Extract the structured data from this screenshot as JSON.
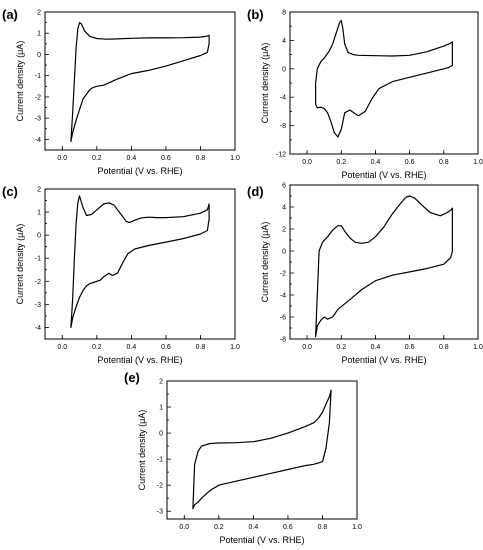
{
  "chart_data": [
    {
      "panel": "(a)",
      "type": "line",
      "xlabel": "Potential (V vs. RHE)",
      "ylabel": "Current density (μA)",
      "xlim": [
        -0.1,
        1.0
      ],
      "ylim": [
        -4.5,
        2
      ],
      "xticks": [
        "0.0",
        "0.2",
        "0.4",
        "0.6",
        "0.8",
        "1.0"
      ],
      "yticks": [
        "-4",
        "-3",
        "-2",
        "-1",
        "0",
        "1",
        "2"
      ],
      "series": [
        {
          "x": [
            0.05,
            0.06,
            0.07,
            0.08,
            0.09,
            0.1,
            0.11,
            0.13,
            0.16,
            0.2,
            0.25,
            0.3,
            0.4,
            0.5,
            0.6,
            0.7,
            0.8,
            0.83,
            0.85,
            0.85,
            0.84,
            0.8,
            0.7,
            0.6,
            0.5,
            0.4,
            0.32,
            0.28,
            0.24,
            0.2,
            0.18,
            0.16,
            0.12,
            0.1,
            0.08,
            0.06,
            0.05
          ],
          "y": [
            -4.1,
            -2.8,
            -1.2,
            0.3,
            1.2,
            1.5,
            1.45,
            1.1,
            0.85,
            0.75,
            0.72,
            0.73,
            0.76,
            0.78,
            0.78,
            0.79,
            0.82,
            0.85,
            0.9,
            0.5,
            0.1,
            -0.05,
            -0.3,
            -0.55,
            -0.75,
            -0.9,
            -1.15,
            -1.3,
            -1.45,
            -1.5,
            -1.55,
            -1.65,
            -2.1,
            -2.6,
            -3.1,
            -3.7,
            -4.1
          ]
        }
      ]
    },
    {
      "panel": "(b)",
      "type": "line",
      "xlabel": "Potential (V vs. RHE)",
      "ylabel": "Current density (μA)",
      "xlim": [
        -0.1,
        1.0
      ],
      "ylim": [
        -12,
        8
      ],
      "xticks": [
        "0.0",
        "0.2",
        "0.4",
        "0.6",
        "0.8",
        "1.0"
      ],
      "yticks": [
        "-12",
        "-8",
        "-4",
        "0",
        "4",
        "8"
      ],
      "series": [
        {
          "x": [
            0.05,
            0.05,
            0.06,
            0.08,
            0.1,
            0.13,
            0.15,
            0.17,
            0.19,
            0.2,
            0.21,
            0.22,
            0.24,
            0.27,
            0.3,
            0.4,
            0.5,
            0.6,
            0.7,
            0.8,
            0.84,
            0.85,
            0.85,
            0.83,
            0.8,
            0.7,
            0.6,
            0.5,
            0.42,
            0.38,
            0.34,
            0.3,
            0.28,
            0.25,
            0.22,
            0.2,
            0.18,
            0.16,
            0.14,
            0.12,
            0.1,
            0.08,
            0.06
          ],
          "y": [
            -5,
            -2,
            0,
            1,
            1.5,
            2.5,
            3.5,
            5,
            6.5,
            6.8,
            5.5,
            3.5,
            2.3,
            2.0,
            1.9,
            1.85,
            1.8,
            1.9,
            2.4,
            3.2,
            3.6,
            3.8,
            0.5,
            0.2,
            0,
            -0.6,
            -1.2,
            -1.8,
            -2.8,
            -4.2,
            -6.0,
            -6.6,
            -6.3,
            -5.8,
            -6.2,
            -8.5,
            -9.6,
            -9.0,
            -7.5,
            -6.2,
            -5.6,
            -5.4,
            -5.5
          ]
        }
      ]
    },
    {
      "panel": "(c)",
      "type": "line",
      "xlabel": "Potential (V vs. RHE)",
      "ylabel": "Current density (μA)",
      "xlim": [
        -0.1,
        1.0
      ],
      "ylim": [
        -4.5,
        2
      ],
      "xticks": [
        "0.0",
        "0.2",
        "0.4",
        "0.6",
        "0.8",
        "1.0"
      ],
      "yticks": [
        "-4",
        "-3",
        "-2",
        "-1",
        "0",
        "1",
        "2"
      ],
      "series": [
        {
          "x": [
            0.05,
            0.06,
            0.07,
            0.08,
            0.09,
            0.1,
            0.12,
            0.14,
            0.17,
            0.2,
            0.24,
            0.27,
            0.3,
            0.34,
            0.37,
            0.39,
            0.42,
            0.46,
            0.5,
            0.55,
            0.6,
            0.7,
            0.8,
            0.84,
            0.85,
            0.85,
            0.84,
            0.8,
            0.7,
            0.6,
            0.5,
            0.42,
            0.38,
            0.35,
            0.32,
            0.29,
            0.27,
            0.24,
            0.22,
            0.2,
            0.18,
            0.16,
            0.14,
            0.12,
            0.1,
            0.08,
            0.06,
            0.05
          ],
          "y": [
            -4.0,
            -2.8,
            -1.0,
            0.5,
            1.4,
            1.7,
            1.2,
            0.85,
            0.9,
            1.1,
            1.35,
            1.4,
            1.3,
            0.9,
            0.6,
            0.55,
            0.65,
            0.75,
            0.78,
            0.76,
            0.76,
            0.8,
            0.95,
            1.1,
            1.35,
            0.7,
            0.2,
            0.05,
            -0.15,
            -0.3,
            -0.45,
            -0.6,
            -0.8,
            -1.2,
            -1.65,
            -1.75,
            -1.65,
            -1.8,
            -1.95,
            -2.0,
            -2.05,
            -2.1,
            -2.2,
            -2.4,
            -2.7,
            -3.1,
            -3.6,
            -4.0
          ]
        }
      ]
    },
    {
      "panel": "(d)",
      "type": "line",
      "xlabel": "Potential (V vs. RHE)",
      "ylabel": "Current density (μA)",
      "xlim": [
        -0.1,
        1.0
      ],
      "ylim": [
        -8,
        6
      ],
      "xticks": [
        "0.0",
        "0.2",
        "0.4",
        "0.6",
        "0.8",
        "1.0"
      ],
      "yticks": [
        "-8",
        "-6",
        "-4",
        "-2",
        "0",
        "2",
        "4",
        "6"
      ],
      "series": [
        {
          "x": [
            0.05,
            0.06,
            0.07,
            0.09,
            0.12,
            0.15,
            0.18,
            0.2,
            0.22,
            0.25,
            0.28,
            0.32,
            0.36,
            0.4,
            0.45,
            0.5,
            0.55,
            0.58,
            0.6,
            0.63,
            0.67,
            0.72,
            0.78,
            0.82,
            0.84,
            0.85,
            0.85,
            0.84,
            0.8,
            0.7,
            0.6,
            0.5,
            0.4,
            0.32,
            0.26,
            0.22,
            0.18,
            0.15,
            0.12,
            0.1,
            0.08,
            0.06,
            0.05
          ],
          "y": [
            -7.8,
            -4,
            0,
            0.8,
            1.3,
            1.9,
            2.3,
            2.3,
            1.8,
            1.2,
            0.8,
            0.7,
            0.8,
            1.3,
            2.2,
            3.4,
            4.4,
            4.9,
            5.0,
            4.8,
            4.2,
            3.5,
            3.2,
            3.5,
            3.7,
            3.9,
            0,
            -0.6,
            -1.2,
            -1.6,
            -1.9,
            -2.2,
            -2.7,
            -3.5,
            -4.3,
            -4.8,
            -5.3,
            -6.0,
            -6.2,
            -6.0,
            -6.3,
            -6.8,
            -7.8
          ]
        }
      ]
    },
    {
      "panel": "(e)",
      "type": "line",
      "xlabel": "Potential (V vs. RHE)",
      "ylabel": "Current density (μA)",
      "xlim": [
        -0.1,
        1.0
      ],
      "ylim": [
        -3.3,
        2
      ],
      "xticks": [
        "0.0",
        "0.2",
        "0.4",
        "0.6",
        "0.8",
        "1.0"
      ],
      "yticks": [
        "-3",
        "-2",
        "-1",
        "0",
        "1",
        "2"
      ],
      "series": [
        {
          "x": [
            0.05,
            0.055,
            0.06,
            0.08,
            0.1,
            0.15,
            0.2,
            0.3,
            0.4,
            0.5,
            0.6,
            0.7,
            0.75,
            0.78,
            0.8,
            0.82,
            0.84,
            0.85,
            0.84,
            0.82,
            0.8,
            0.75,
            0.7,
            0.6,
            0.5,
            0.4,
            0.3,
            0.2,
            0.15,
            0.1,
            0.08,
            0.06,
            0.05
          ],
          "y": [
            -2.9,
            -2.0,
            -1.2,
            -0.7,
            -0.5,
            -0.4,
            -0.38,
            -0.37,
            -0.33,
            -0.2,
            0.0,
            0.25,
            0.4,
            0.6,
            0.8,
            1.1,
            1.4,
            1.65,
            0.4,
            -0.6,
            -1.1,
            -1.2,
            -1.25,
            -1.4,
            -1.55,
            -1.7,
            -1.85,
            -2.0,
            -2.2,
            -2.5,
            -2.65,
            -2.75,
            -2.9
          ]
        }
      ]
    }
  ]
}
